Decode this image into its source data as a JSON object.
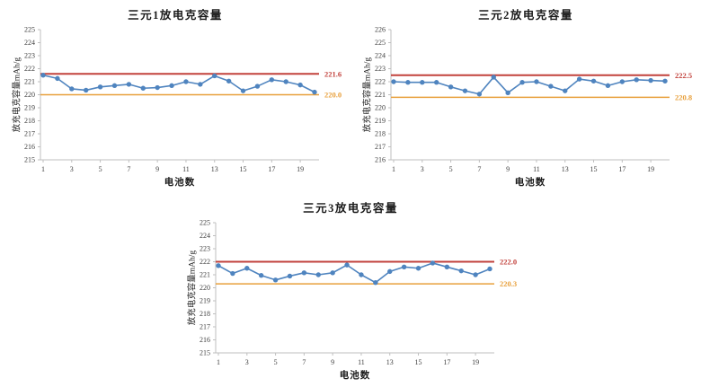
{
  "page": {
    "background": "#ffffff"
  },
  "palette": {
    "series": "#4f84bf",
    "upper_limit": "#c2423c",
    "lower_limit": "#e8a03c",
    "axis": "#bfbfbf",
    "tick_text": "#3f3f3f",
    "title_text": "#1a1a1a"
  },
  "chart_data": [
    {
      "type": "line",
      "title": "三元1放电克容量",
      "xlabel": "电池数",
      "ylabel": "放充电克容量mAh/g",
      "ylim": [
        215,
        225
      ],
      "ytick_interval": 1,
      "x": [
        1,
        2,
        3,
        4,
        5,
        6,
        7,
        8,
        9,
        10,
        11,
        12,
        13,
        14,
        15,
        16,
        17,
        18,
        19,
        20
      ],
      "x_tick_labels": [
        1,
        3,
        5,
        7,
        9,
        11,
        13,
        15,
        17,
        19
      ],
      "values": [
        221.5,
        221.25,
        220.45,
        220.35,
        220.6,
        220.7,
        220.8,
        220.5,
        220.55,
        220.7,
        221.0,
        220.8,
        221.45,
        221.05,
        220.3,
        220.65,
        221.15,
        221.0,
        220.75,
        220.2
      ],
      "upper_limit": {
        "value": 221.6,
        "label": "221.6"
      },
      "lower_limit": {
        "value": 220.0,
        "label": "220.0"
      },
      "grid": false,
      "legend": "none",
      "marker": "circle"
    },
    {
      "type": "line",
      "title": "三元2放电克容量",
      "xlabel": "电池数",
      "ylabel": "放充电克容量mAh/g",
      "ylim": [
        216,
        226
      ],
      "ytick_interval": 1,
      "x": [
        1,
        2,
        3,
        4,
        5,
        6,
        7,
        8,
        9,
        10,
        11,
        12,
        13,
        14,
        15,
        16,
        17,
        18,
        19,
        20
      ],
      "x_tick_labels": [
        1,
        3,
        5,
        7,
        9,
        11,
        13,
        15,
        17,
        19
      ],
      "values": [
        222.0,
        221.95,
        221.95,
        221.95,
        221.6,
        221.3,
        221.05,
        222.35,
        221.15,
        221.95,
        222.0,
        221.65,
        221.3,
        222.2,
        222.05,
        221.7,
        222.0,
        222.15,
        222.1,
        222.05
      ],
      "upper_limit": {
        "value": 222.5,
        "label": "222.5"
      },
      "lower_limit": {
        "value": 220.8,
        "label": "220.8"
      },
      "grid": false,
      "legend": "none",
      "marker": "circle"
    },
    {
      "type": "line",
      "title": "三元3放电克容量",
      "xlabel": "电池数",
      "ylabel": "放充电克容量mAh/g",
      "ylim": [
        215,
        225
      ],
      "ytick_interval": 1,
      "x": [
        1,
        2,
        3,
        4,
        5,
        6,
        7,
        8,
        9,
        10,
        11,
        12,
        13,
        14,
        15,
        16,
        17,
        18,
        19,
        20
      ],
      "x_tick_labels": [
        1,
        3,
        5,
        7,
        9,
        11,
        13,
        15,
        17,
        19
      ],
      "values": [
        221.7,
        221.1,
        221.5,
        220.95,
        220.6,
        220.9,
        221.15,
        221.0,
        221.15,
        221.75,
        221.0,
        220.4,
        221.25,
        221.6,
        221.5,
        221.9,
        221.6,
        221.3,
        221.0,
        221.45
      ],
      "upper_limit": {
        "value": 222.0,
        "label": "222.0"
      },
      "lower_limit": {
        "value": 220.3,
        "label": "220.3"
      },
      "grid": false,
      "legend": "none",
      "marker": "circle"
    }
  ]
}
